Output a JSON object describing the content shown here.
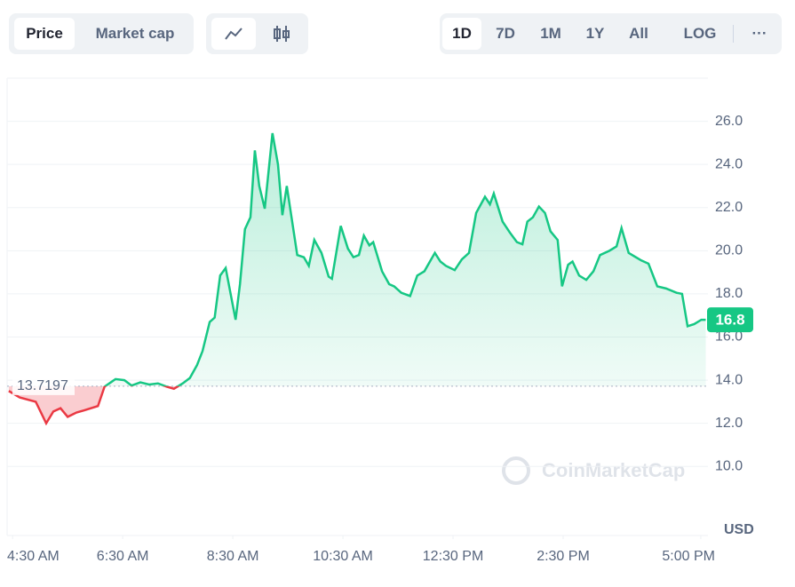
{
  "toolbar": {
    "metrics": [
      "Price",
      "Market cap"
    ],
    "ranges": [
      "1D",
      "7D",
      "1M",
      "1Y",
      "All"
    ],
    "scale": "LOG",
    "more": "···"
  },
  "chart_data": {
    "type": "line",
    "watermark": "CoinMarketCap",
    "y_unit": "USD",
    "baseline": 13.7197,
    "baseline_label": "13.7197",
    "x": [
      4.43,
      4.63,
      4.92,
      5.11,
      5.24,
      5.37,
      5.5,
      5.66,
      5.8,
      6.05,
      6.17,
      6.37,
      6.53,
      6.66,
      6.82,
      6.98,
      7.14,
      7.3,
      7.43,
      7.59,
      7.72,
      7.85,
      7.95,
      8.08,
      8.17,
      8.27,
      8.37,
      8.46,
      8.55,
      8.63,
      8.72,
      8.82,
      8.9,
      8.98,
      9.08,
      9.22,
      9.32,
      9.4,
      9.48,
      9.67,
      9.79,
      9.88,
      9.98,
      10.11,
      10.24,
      10.3,
      10.46,
      10.59,
      10.69,
      10.79,
      10.88,
      10.98,
      11.05,
      11.21,
      11.34,
      11.43,
      11.56,
      11.72,
      11.85,
      11.98,
      12.08,
      12.17,
      12.27,
      12.37,
      12.53,
      12.66,
      12.79,
      12.92,
      13.08,
      13.17,
      13.24,
      13.4,
      13.53,
      13.66,
      13.76,
      13.85,
      13.95,
      14.06,
      14.17,
      14.27,
      14.4,
      14.48,
      14.59,
      14.67,
      14.79,
      14.92,
      15.05,
      15.17,
      15.34,
      15.47,
      15.56,
      15.69,
      15.82,
      15.92,
      16.05,
      16.21,
      16.37,
      16.56,
      16.66,
      16.76,
      16.88,
      17.01,
      17.09
    ],
    "series": [
      {
        "name": "Price",
        "color": "#16c784",
        "negative_color": "#ea3943",
        "values": [
          13.5,
          13.2,
          13.0,
          12.0,
          12.55,
          12.7,
          12.3,
          12.5,
          12.6,
          12.8,
          13.7,
          14.05,
          14.0,
          13.75,
          13.9,
          13.8,
          13.85,
          13.7,
          13.6,
          13.85,
          14.1,
          14.7,
          15.35,
          16.7,
          16.9,
          18.85,
          19.2,
          18.0,
          16.8,
          18.45,
          21.0,
          21.55,
          24.65,
          23.0,
          21.95,
          25.45,
          24.0,
          21.65,
          23.0,
          19.8,
          19.7,
          19.3,
          20.5,
          19.9,
          18.8,
          18.7,
          21.15,
          20.1,
          19.7,
          19.8,
          20.7,
          20.25,
          20.4,
          19.05,
          18.45,
          18.35,
          18.05,
          17.9,
          18.85,
          19.05,
          19.5,
          19.9,
          19.5,
          19.3,
          19.1,
          19.6,
          19.9,
          21.75,
          22.5,
          22.15,
          22.65,
          21.35,
          20.85,
          20.4,
          20.3,
          21.35,
          21.55,
          22.05,
          21.75,
          20.9,
          20.5,
          18.35,
          19.35,
          19.5,
          18.85,
          18.65,
          19.05,
          19.8,
          20.0,
          20.2,
          21.05,
          19.9,
          19.7,
          19.55,
          19.4,
          18.35,
          18.25,
          18.05,
          18.0,
          16.5,
          16.6,
          16.8,
          16.8
        ]
      }
    ],
    "xlim": [
      4.4,
      17.13
    ],
    "ylim": [
      6.8,
      28
    ],
    "xticks": [
      {
        "value": 4.5,
        "label": "4:30 AM"
      },
      {
        "value": 6.5,
        "label": "6:30 AM"
      },
      {
        "value": 8.5,
        "label": "8:30 AM"
      },
      {
        "value": 10.5,
        "label": "10:30 AM"
      },
      {
        "value": 12.5,
        "label": "12:30 PM"
      },
      {
        "value": 14.5,
        "label": "2:30 PM"
      },
      {
        "value": 17,
        "label": "5:00 PM"
      }
    ],
    "yticks": [
      {
        "value": 10,
        "label": "10.0"
      },
      {
        "value": 12,
        "label": "12.0"
      },
      {
        "value": 14,
        "label": "14.0"
      },
      {
        "value": 16,
        "label": "16.0"
      },
      {
        "value": 18,
        "label": "18.0"
      },
      {
        "value": 20,
        "label": "20.0"
      },
      {
        "value": 22,
        "label": "22.0"
      },
      {
        "value": 24,
        "label": "24.0"
      },
      {
        "value": 26,
        "label": "26.0"
      }
    ],
    "grid": true
  }
}
